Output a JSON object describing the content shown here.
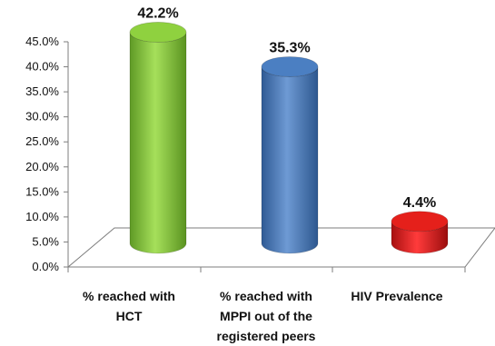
{
  "chart_data": {
    "type": "bar",
    "categories": [
      [
        "% reached with",
        "HCT"
      ],
      [
        "% reached with",
        "MPPI out of the",
        "registered peers"
      ],
      [
        "HIV Prevalence"
      ]
    ],
    "values": [
      42.2,
      35.3,
      4.4
    ],
    "data_labels": [
      "42.2%",
      "35.3%",
      "4.4%"
    ],
    "colors": [
      "#8fd13f",
      "#4b7fc2",
      "#e5201b"
    ],
    "yticks": [
      "0.0%",
      "5.0%",
      "10.0%",
      "15.0%",
      "20.0%",
      "25.0%",
      "30.0%",
      "35.0%",
      "40.0%",
      "45.0%"
    ],
    "ylim": [
      0,
      45
    ],
    "title": "",
    "xlabel": "",
    "ylabel": "",
    "grid": false,
    "legend": "none",
    "style": "3d-cylinder"
  }
}
